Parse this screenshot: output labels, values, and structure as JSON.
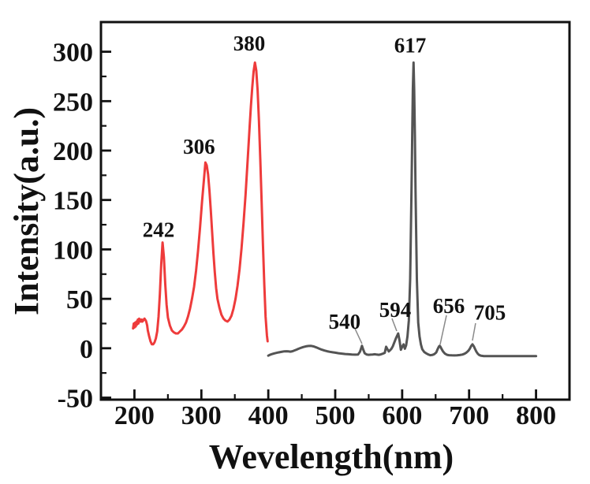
{
  "figure": {
    "background": "#ffffff"
  },
  "chart_data": {
    "type": "line",
    "title": "",
    "xlabel": "Wevelength(nm)",
    "ylabel": "Intensity(a.u.)",
    "xlim": [
      150,
      850
    ],
    "ylim": [
      -52,
      330
    ],
    "xticks": [
      200,
      300,
      400,
      500,
      600,
      700,
      800
    ],
    "yticks": [
      -50,
      0,
      50,
      100,
      150,
      200,
      250,
      300
    ],
    "xticks_minor": [
      250,
      350,
      450,
      550,
      650,
      750
    ],
    "yticks_minor": [
      -25,
      25,
      75,
      125,
      175,
      225,
      275
    ],
    "grid": false,
    "legend": "none",
    "axis_color": "#111111",
    "leader_color": "#8a8a8a",
    "series": [
      {
        "name": "red-excitation-spectrum",
        "color": "#ee3b3b",
        "line_width": 3,
        "points": [
          [
            198,
            20
          ],
          [
            199,
            25
          ],
          [
            200,
            21
          ],
          [
            201,
            26
          ],
          [
            202,
            22
          ],
          [
            203,
            27
          ],
          [
            204,
            24
          ],
          [
            205,
            29
          ],
          [
            206,
            25
          ],
          [
            207,
            30
          ],
          [
            208,
            27
          ],
          [
            209,
            29
          ],
          [
            210,
            27
          ],
          [
            211,
            29
          ],
          [
            212,
            27
          ],
          [
            213,
            28
          ],
          [
            214,
            29
          ],
          [
            215,
            30
          ],
          [
            216,
            29
          ],
          [
            217,
            28
          ],
          [
            218,
            26
          ],
          [
            219,
            23
          ],
          [
            220,
            18
          ],
          [
            222,
            12
          ],
          [
            224,
            7
          ],
          [
            226,
            4
          ],
          [
            228,
            4
          ],
          [
            230,
            6
          ],
          [
            232,
            10
          ],
          [
            234,
            17
          ],
          [
            236,
            32
          ],
          [
            238,
            55
          ],
          [
            240,
            85
          ],
          [
            242,
            107
          ],
          [
            244,
            92
          ],
          [
            246,
            65
          ],
          [
            248,
            44
          ],
          [
            250,
            31
          ],
          [
            253,
            23
          ],
          [
            256,
            18
          ],
          [
            259,
            16
          ],
          [
            262,
            15
          ],
          [
            265,
            15
          ],
          [
            268,
            17
          ],
          [
            271,
            19
          ],
          [
            274,
            22
          ],
          [
            277,
            26
          ],
          [
            280,
            32
          ],
          [
            283,
            40
          ],
          [
            286,
            50
          ],
          [
            289,
            62
          ],
          [
            292,
            78
          ],
          [
            295,
            98
          ],
          [
            298,
            122
          ],
          [
            301,
            148
          ],
          [
            304,
            172
          ],
          [
            306,
            188
          ],
          [
            308,
            185
          ],
          [
            310,
            176
          ],
          [
            312,
            160
          ],
          [
            314,
            140
          ],
          [
            316,
            118
          ],
          [
            318,
            96
          ],
          [
            320,
            77
          ],
          [
            322,
            61
          ],
          [
            324,
            50
          ],
          [
            327,
            41
          ],
          [
            330,
            34
          ],
          [
            333,
            30
          ],
          [
            336,
            28
          ],
          [
            339,
            27
          ],
          [
            342,
            29
          ],
          [
            345,
            33
          ],
          [
            348,
            40
          ],
          [
            351,
            50
          ],
          [
            354,
            63
          ],
          [
            357,
            80
          ],
          [
            360,
            101
          ],
          [
            363,
            126
          ],
          [
            366,
            155
          ],
          [
            369,
            188
          ],
          [
            372,
            223
          ],
          [
            374,
            245
          ],
          [
            376,
            264
          ],
          [
            378,
            280
          ],
          [
            380,
            289
          ],
          [
            382,
            281
          ],
          [
            384,
            261
          ],
          [
            386,
            230
          ],
          [
            388,
            191
          ],
          [
            390,
            148
          ],
          [
            392,
            104
          ],
          [
            394,
            64
          ],
          [
            396,
            32
          ],
          [
            398,
            13
          ],
          [
            399,
            7
          ]
        ]
      },
      {
        "name": "gray-emission-spectrum",
        "color": "#545454",
        "line_width": 3,
        "points": [
          [
            400,
            -7.5
          ],
          [
            403,
            -6.5
          ],
          [
            406,
            -5.8
          ],
          [
            409,
            -5.2
          ],
          [
            412,
            -4.7
          ],
          [
            415,
            -4.2
          ],
          [
            418,
            -3.8
          ],
          [
            421,
            -3.4
          ],
          [
            424,
            -3.1
          ],
          [
            427,
            -3.0
          ],
          [
            430,
            -3.2
          ],
          [
            433,
            -3.4
          ],
          [
            436,
            -3.0
          ],
          [
            439,
            -2.2
          ],
          [
            442,
            -1.4
          ],
          [
            445,
            -0.6
          ],
          [
            448,
            0.2
          ],
          [
            452,
            1.2
          ],
          [
            456,
            1.9
          ],
          [
            460,
            2.3
          ],
          [
            464,
            2.4
          ],
          [
            468,
            1.8
          ],
          [
            472,
            0.8
          ],
          [
            476,
            -0.3
          ],
          [
            480,
            -1.4
          ],
          [
            484,
            -2.3
          ],
          [
            488,
            -3.0
          ],
          [
            492,
            -3.6
          ],
          [
            496,
            -4.1
          ],
          [
            500,
            -4.5
          ],
          [
            505,
            -5.0
          ],
          [
            510,
            -5.4
          ],
          [
            515,
            -5.8
          ],
          [
            520,
            -6.1
          ],
          [
            525,
            -6.3
          ],
          [
            530,
            -6.5
          ],
          [
            534,
            -6.4
          ],
          [
            537,
            -3.5
          ],
          [
            540,
            2.5
          ],
          [
            542,
            -1.5
          ],
          [
            544,
            -5.0
          ],
          [
            547,
            -6.4
          ],
          [
            550,
            -6.6
          ],
          [
            553,
            -6.5
          ],
          [
            556,
            -6.3
          ],
          [
            559,
            -6.1
          ],
          [
            562,
            -6.4
          ],
          [
            565,
            -6.6
          ],
          [
            568,
            -6.2
          ],
          [
            571,
            -5.5
          ],
          [
            574,
            -4.6
          ],
          [
            576,
            1.5
          ],
          [
            578,
            -1.0
          ],
          [
            580,
            -3.2
          ],
          [
            582,
            -2.0
          ],
          [
            584,
            -0.5
          ],
          [
            586,
            2.0
          ],
          [
            588,
            5.5
          ],
          [
            591,
            10.5
          ],
          [
            594,
            15.0
          ],
          [
            596,
            8.0
          ],
          [
            598,
            -1.5
          ],
          [
            600,
            1.5
          ],
          [
            602,
            4.0
          ],
          [
            604,
            -0.5
          ],
          [
            606,
            3.0
          ],
          [
            608,
            12
          ],
          [
            610,
            28
          ],
          [
            612,
            70
          ],
          [
            614,
            160
          ],
          [
            615,
            215
          ],
          [
            616,
            262
          ],
          [
            617,
            289
          ],
          [
            618,
            262
          ],
          [
            619,
            215
          ],
          [
            620,
            160
          ],
          [
            622,
            70
          ],
          [
            624,
            26
          ],
          [
            626,
            12
          ],
          [
            628,
            4
          ],
          [
            630,
            -1
          ],
          [
            633,
            -3.8
          ],
          [
            636,
            -5.2
          ],
          [
            639,
            -6.3
          ],
          [
            642,
            -7.0
          ],
          [
            645,
            -6.8
          ],
          [
            648,
            -6.0
          ],
          [
            651,
            -4.2
          ],
          [
            653,
            -1.0
          ],
          [
            655,
            1.8
          ],
          [
            656,
            2.5
          ],
          [
            657,
            1.8
          ],
          [
            659,
            -0.8
          ],
          [
            661,
            -3.2
          ],
          [
            664,
            -5.5
          ],
          [
            667,
            -6.6
          ],
          [
            670,
            -7.0
          ],
          [
            674,
            -7.2
          ],
          [
            678,
            -7.3
          ],
          [
            682,
            -7.2
          ],
          [
            686,
            -6.9
          ],
          [
            690,
            -6.4
          ],
          [
            693,
            -5.6
          ],
          [
            696,
            -4.4
          ],
          [
            699,
            -2.5
          ],
          [
            701,
            -0.5
          ],
          [
            703,
            2.2
          ],
          [
            705,
            4.0
          ],
          [
            707,
            2.0
          ],
          [
            709,
            -1.0
          ],
          [
            711,
            -3.5
          ],
          [
            713,
            -5.5
          ],
          [
            715,
            -6.8
          ],
          [
            718,
            -7.6
          ],
          [
            722,
            -7.9
          ],
          [
            728,
            -8.0
          ],
          [
            736,
            -8.0
          ],
          [
            745,
            -8.0
          ],
          [
            755,
            -8.0
          ],
          [
            765,
            -8.0
          ],
          [
            775,
            -8.0
          ],
          [
            785,
            -8.0
          ],
          [
            795,
            -8.0
          ],
          [
            800,
            -8.0
          ]
        ]
      }
    ],
    "annotations": [
      {
        "label": "242",
        "x": 236.0,
        "y": 120.0,
        "leader": null
      },
      {
        "label": "306",
        "x": 296.5,
        "y": 204.0,
        "leader": null
      },
      {
        "label": "380",
        "x": 371.5,
        "y": 308.5,
        "leader": null
      },
      {
        "label": "617",
        "x": 612.0,
        "y": 306.5,
        "leader": null
      },
      {
        "label": "540",
        "x": 514.0,
        "y": 27.0,
        "leader": [
          529.5,
          19.8,
          540.0,
          4.6
        ]
      },
      {
        "label": "594",
        "x": 589.5,
        "y": 39.0,
        "leader": [
          584.8,
          30.1,
          591.9,
          17.4
        ]
      },
      {
        "label": "656",
        "x": 669.7,
        "y": 43.0,
        "leader": [
          666.2,
          33.3,
          656.7,
          3.8
        ]
      },
      {
        "label": "705",
        "x": 731.0,
        "y": 36.0,
        "leader": [
          709.7,
          25.4,
          705.0,
          7.8
        ]
      }
    ]
  }
}
